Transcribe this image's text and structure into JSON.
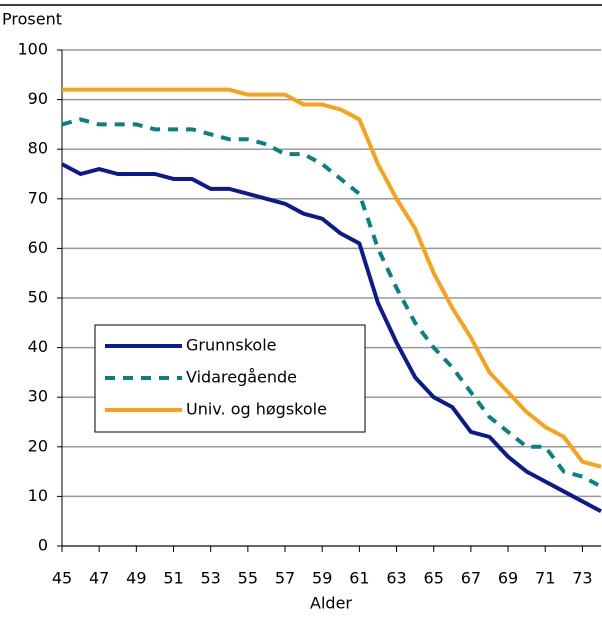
{
  "chart_data": {
    "type": "line",
    "y_label": "Prosent",
    "x_label": "Alder",
    "x": [
      45,
      46,
      47,
      48,
      49,
      50,
      51,
      52,
      53,
      54,
      55,
      56,
      57,
      58,
      59,
      60,
      61,
      62,
      63,
      64,
      65,
      66,
      67,
      68,
      69,
      70,
      71,
      72,
      73,
      74
    ],
    "series": [
      {
        "name": "Grunnskole",
        "color": "#0b1b8f",
        "style": "solid",
        "values": [
          77,
          75,
          76,
          75,
          75,
          75,
          74,
          74,
          72,
          72,
          71,
          70,
          69,
          67,
          66,
          63,
          61,
          49,
          41,
          34,
          30,
          28,
          23,
          22,
          18,
          15,
          13,
          11,
          9,
          7
        ]
      },
      {
        "name": "Vidaregående",
        "color": "#0a8080",
        "style": "dashed",
        "values": [
          85,
          86,
          85,
          85,
          85,
          84,
          84,
          84,
          83,
          82,
          82,
          81,
          79,
          79,
          77,
          74,
          71,
          60,
          52,
          45,
          40,
          36,
          31,
          26,
          23,
          20,
          20,
          15,
          14,
          12
        ]
      },
      {
        "name": "Univ. og høgskole",
        "color": "#f7a21b",
        "style": "solid",
        "values": [
          92,
          92,
          92,
          92,
          92,
          92,
          92,
          92,
          92,
          92,
          91,
          91,
          91,
          89,
          89,
          88,
          86,
          77,
          70,
          64,
          55,
          48,
          42,
          35,
          31,
          27,
          24,
          22,
          17,
          16
        ]
      }
    ],
    "xlim": [
      45,
      74
    ],
    "xticks": [
      45,
      47,
      49,
      51,
      53,
      55,
      57,
      59,
      61,
      63,
      65,
      67,
      69,
      71,
      73
    ],
    "ylim": [
      0,
      100
    ],
    "yticks": [
      0,
      10,
      20,
      30,
      40,
      50,
      60,
      70,
      80,
      90,
      100
    ],
    "grid": true
  }
}
